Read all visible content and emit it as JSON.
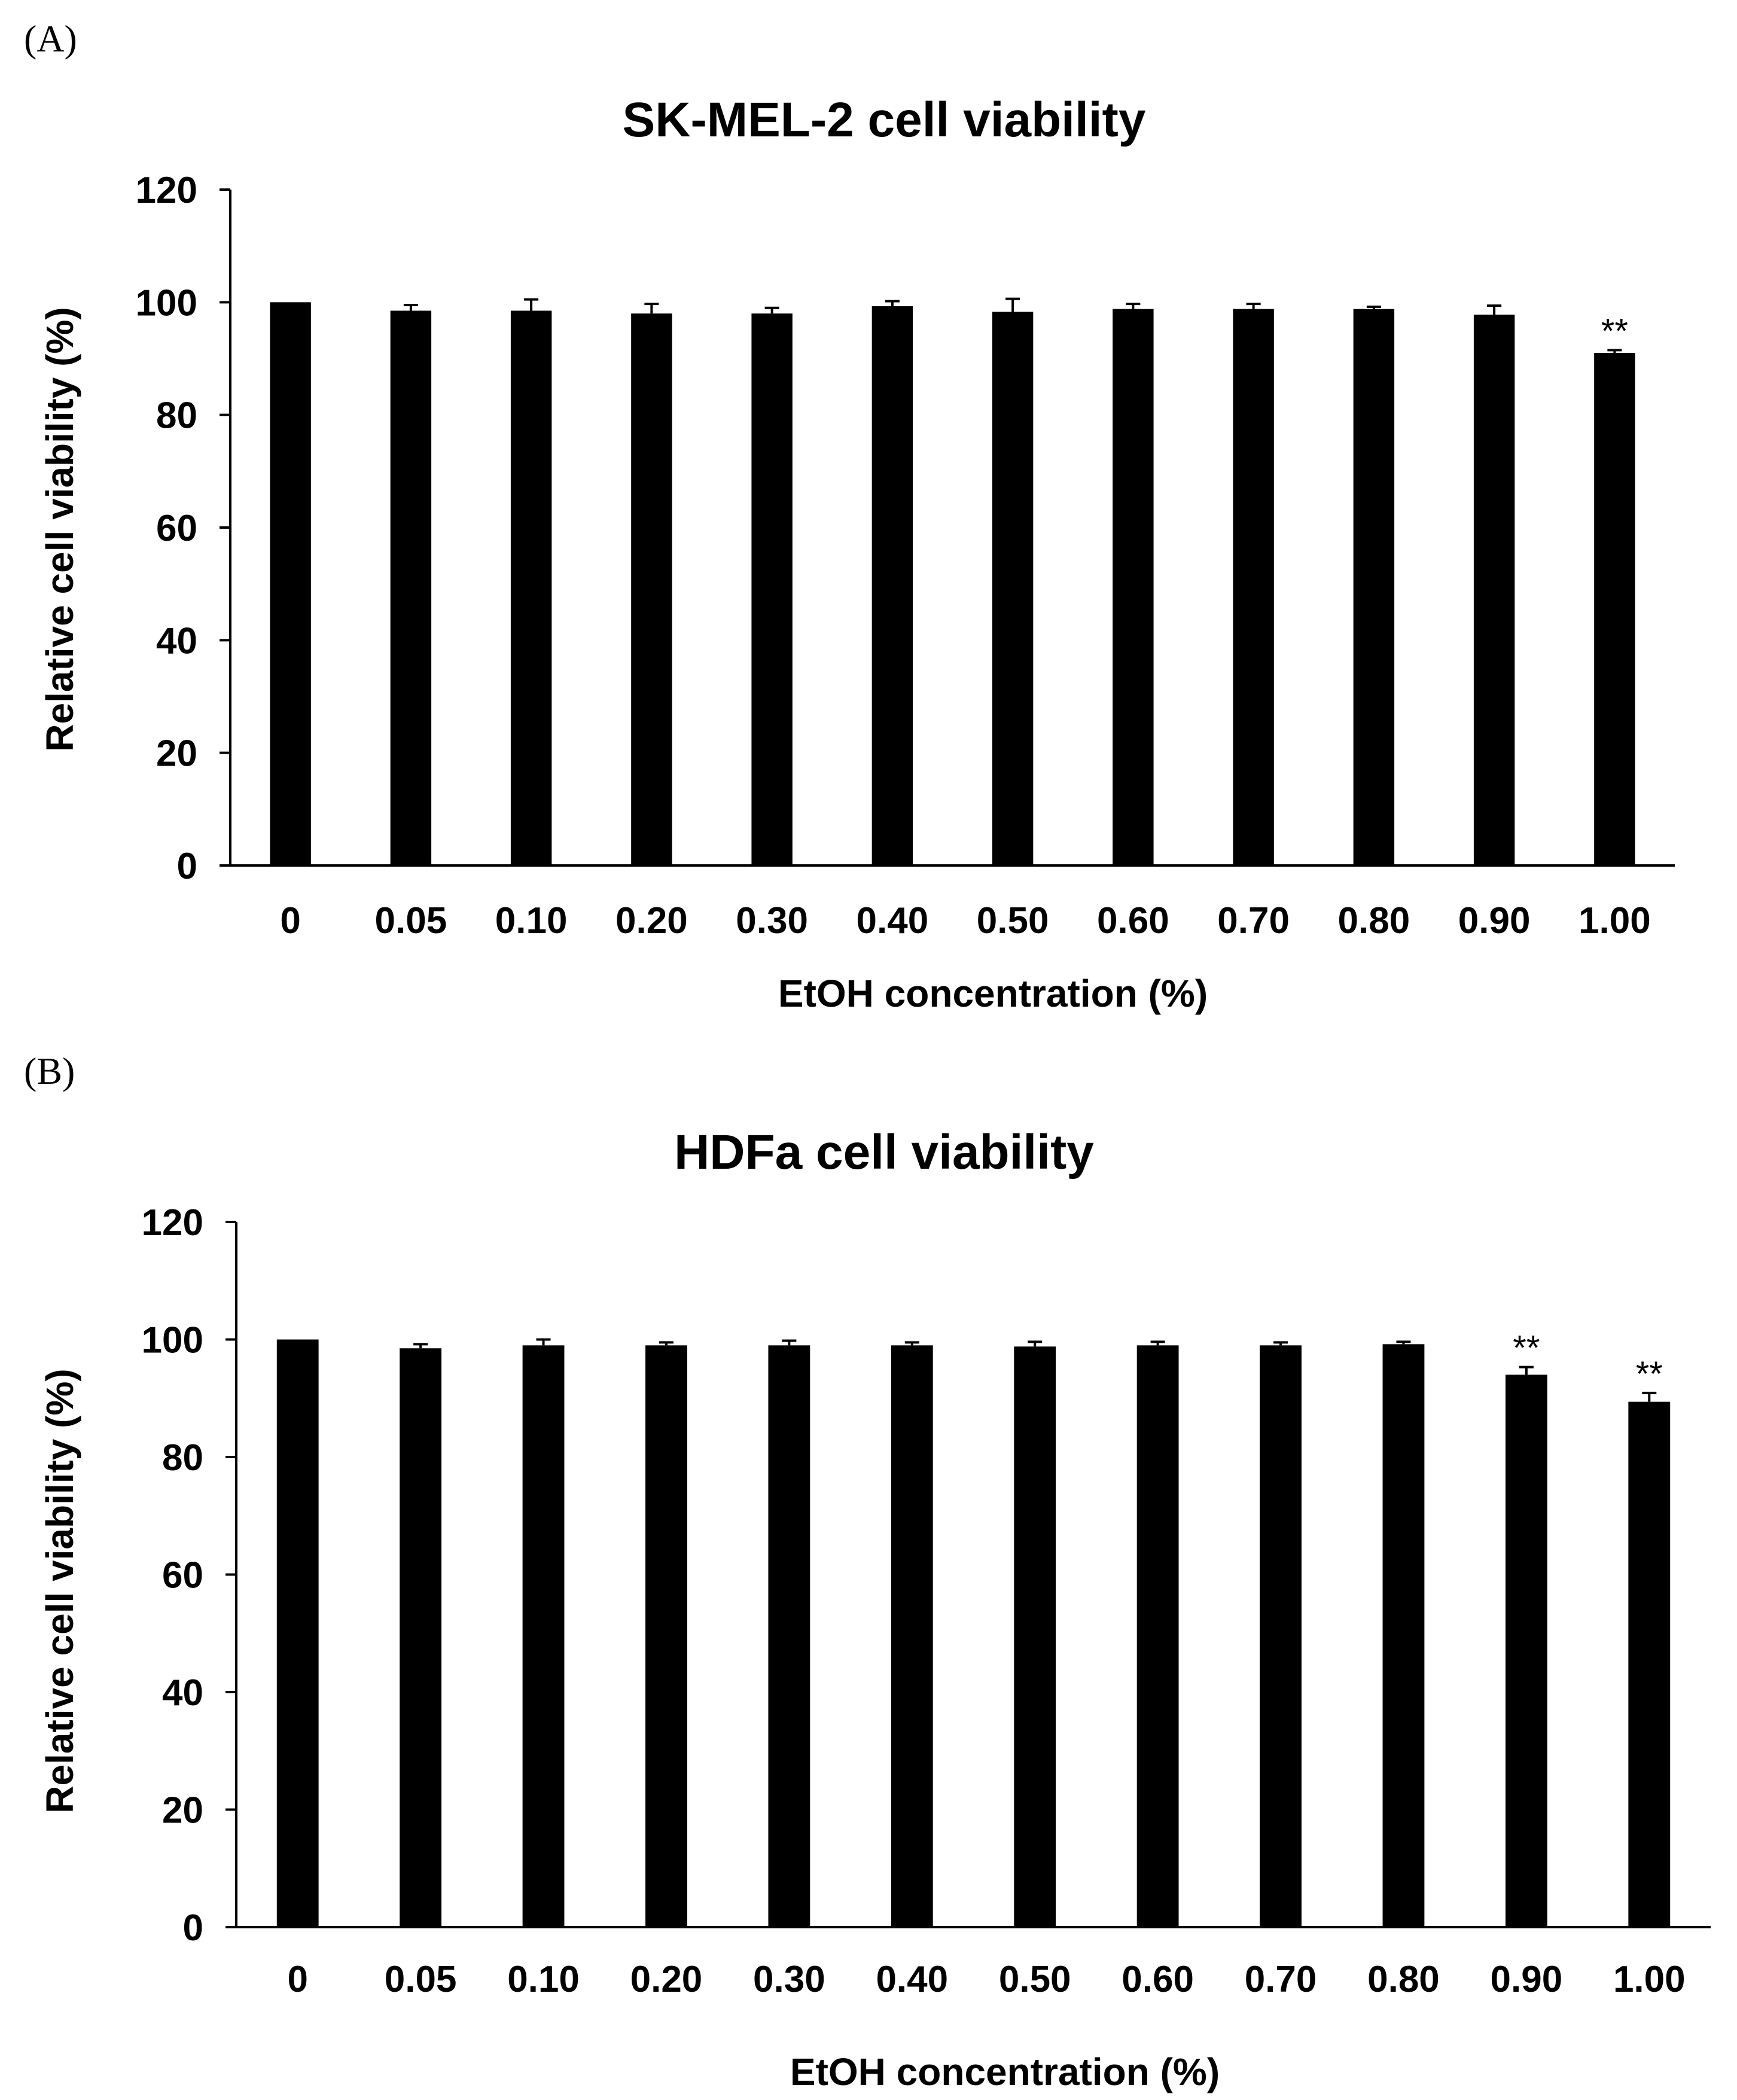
{
  "chart_data": [
    {
      "type": "bar",
      "panel_label": "(A)",
      "title": "SK-MEL-2 cell viability",
      "xlabel": "EtOH concentration (%)",
      "ylabel": "Relative cell viability (%)",
      "ylim": [
        0,
        120
      ],
      "yticks": [
        "0",
        "20",
        "40",
        "60",
        "80",
        "100",
        "120"
      ],
      "categories": [
        "0",
        "0.05",
        "0.10",
        "0.20",
        "0.30",
        "0.40",
        "0.50",
        "0.60",
        "0.70",
        "0.80",
        "0.90",
        "1.00"
      ],
      "values": [
        100,
        98.5,
        98.5,
        98,
        98,
        99.3,
        98.3,
        98.8,
        98.8,
        98.8,
        97.8,
        91
      ],
      "errors": [
        0,
        1,
        2,
        1.7,
        1,
        0.9,
        2.3,
        0.9,
        0.9,
        0.4,
        1.6,
        0.5
      ],
      "significance": [
        "",
        "",
        "",
        "",
        "",
        "",
        "",
        "",
        "",
        "",
        "",
        "**"
      ],
      "grid": false,
      "color": "#000000"
    },
    {
      "type": "bar",
      "panel_label": "(B)",
      "title": "HDFa cell viability",
      "xlabel": "EtOH concentration (%)",
      "ylabel": "Relative cell viability (%)",
      "ylim": [
        0,
        120
      ],
      "yticks": [
        "0",
        "20",
        "40",
        "60",
        "80",
        "100",
        "120"
      ],
      "categories": [
        "0",
        "0.05",
        "0.10",
        "0.20",
        "0.30",
        "0.40",
        "0.50",
        "0.60",
        "0.70",
        "0.80",
        "0.90",
        "1.00"
      ],
      "values": [
        100,
        98.5,
        99,
        99,
        99,
        99,
        98.8,
        99,
        99,
        99.2,
        94,
        89.4
      ],
      "errors": [
        0,
        0.7,
        1,
        0.5,
        0.8,
        0.5,
        0.8,
        0.6,
        0.5,
        0.4,
        1.3,
        1.5
      ],
      "significance": [
        "",
        "",
        "",
        "",
        "",
        "",
        "",
        "",
        "",
        "",
        "**",
        "**"
      ],
      "grid": false,
      "color": "#000000"
    }
  ]
}
